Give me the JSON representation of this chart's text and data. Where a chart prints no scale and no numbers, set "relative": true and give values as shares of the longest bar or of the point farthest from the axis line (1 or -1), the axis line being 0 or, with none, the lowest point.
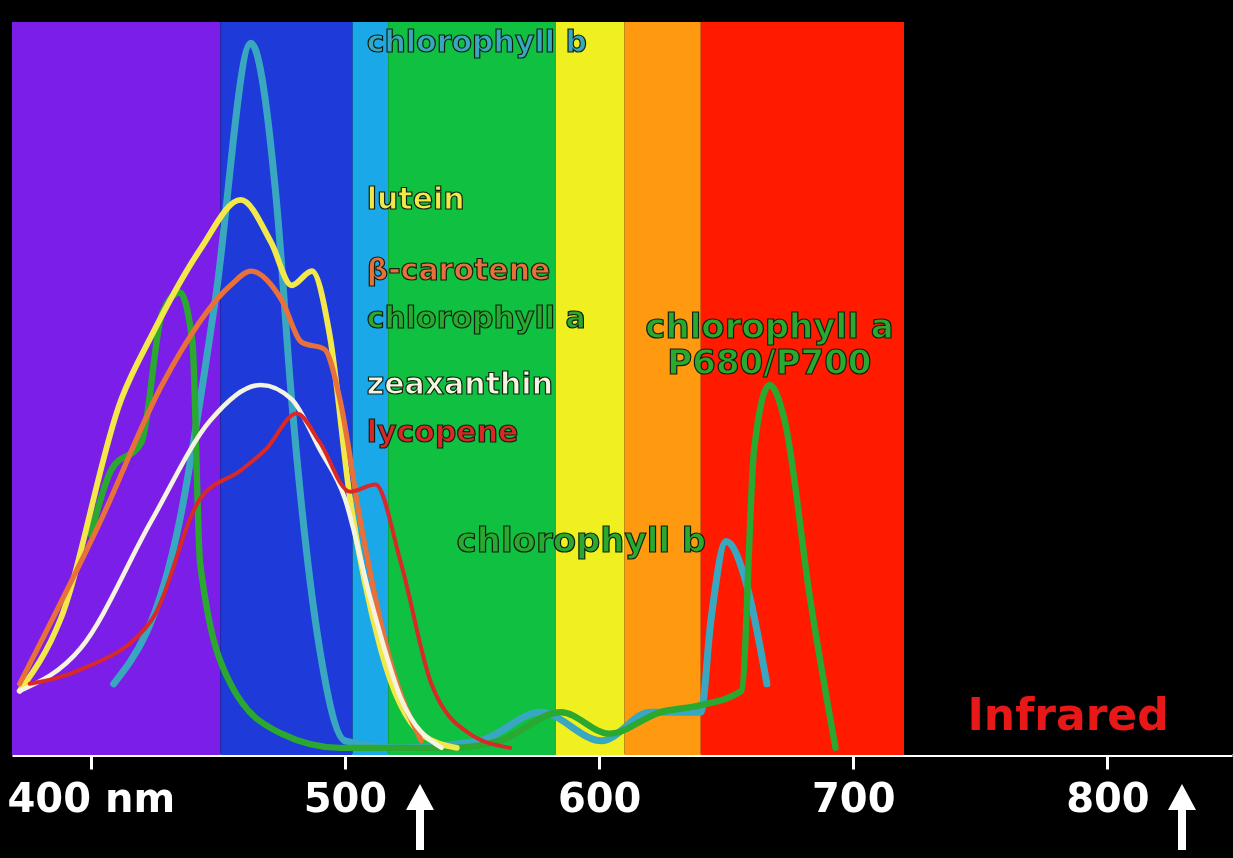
{
  "chart_data": {
    "type": "line",
    "relative": true,
    "xlim": [
      369,
      849
    ],
    "xticks": [
      {
        "value": 400,
        "label": "400 nm"
      },
      500,
      600,
      700,
      800
    ],
    "series": [
      {
        "name": "chlorophyll b",
        "color": "#3aa7c0",
        "x": [
          409,
          435,
          449,
          463,
          473,
          479,
          490,
          500,
          522,
          553,
          577,
          601,
          620,
          640,
          644,
          650,
          658,
          666
        ],
        "values": [
          0.1,
          0.33,
          0.64,
          1.0,
          0.78,
          0.5,
          0.15,
          0.02,
          0.01,
          0.02,
          0.06,
          0.02,
          0.06,
          0.06,
          0.19,
          0.3,
          0.24,
          0.1
        ]
      },
      {
        "name": "chlorophyll a",
        "color": "#2aa830",
        "x": [
          400,
          408,
          420,
          428,
          435,
          440,
          443,
          455,
          475,
          498,
          542,
          561,
          585,
          604,
          624,
          640,
          656,
          661,
          667,
          673,
          683,
          693
        ],
        "values": [
          0.31,
          0.4,
          0.44,
          0.62,
          0.65,
          0.58,
          0.27,
          0.1,
          0.03,
          0.01,
          0.01,
          0.02,
          0.06,
          0.03,
          0.06,
          0.07,
          0.09,
          0.43,
          0.52,
          0.47,
          0.22,
          0.01
        ]
      },
      {
        "name": "lutein",
        "color": "#f2e84a",
        "x": [
          372,
          388,
          412,
          424,
          443,
          459,
          471,
          479,
          487,
          494,
          502,
          514,
          530,
          544
        ],
        "values": [
          0.09,
          0.19,
          0.5,
          0.59,
          0.71,
          0.78,
          0.72,
          0.66,
          0.68,
          0.59,
          0.36,
          0.15,
          0.03,
          0.01
        ]
      },
      {
        "name": "β-carotene",
        "color": "#e8703a",
        "x": [
          372,
          404,
          428,
          455,
          463,
          475,
          483,
          492,
          498,
          506,
          518,
          530
        ],
        "values": [
          0.1,
          0.33,
          0.52,
          0.66,
          0.68,
          0.64,
          0.58,
          0.57,
          0.5,
          0.33,
          0.13,
          0.02
        ]
      },
      {
        "name": "zeaxanthin",
        "color": "#f4f4e0",
        "x": [
          372,
          396,
          424,
          447,
          467,
          479,
          490,
          500,
          510,
          522,
          538
        ],
        "values": [
          0.09,
          0.15,
          0.33,
          0.47,
          0.52,
          0.5,
          0.43,
          0.36,
          0.22,
          0.08,
          0.01
        ]
      },
      {
        "name": "lycopene",
        "color": "#d82828",
        "x": [
          376,
          396,
          424,
          443,
          459,
          469,
          481,
          490,
          502,
          512,
          522,
          534,
          549,
          565
        ],
        "values": [
          0.1,
          0.12,
          0.19,
          0.36,
          0.4,
          0.43,
          0.48,
          0.44,
          0.37,
          0.38,
          0.27,
          0.1,
          0.03,
          0.01
        ]
      }
    ],
    "bands": [
      {
        "axis": "x",
        "from": 369,
        "to": 451,
        "color": "#7a1ee8"
      },
      {
        "axis": "x",
        "from": 451,
        "to": 503,
        "color": "#1e3ad8"
      },
      {
        "axis": "x",
        "from": 503,
        "to": 517,
        "color": "#1aa8e8"
      },
      {
        "axis": "x",
        "from": 517,
        "to": 583,
        "color": "#10c040"
      },
      {
        "axis": "x",
        "from": 583,
        "to": 610,
        "color": "#f0f020"
      },
      {
        "axis": "x",
        "from": 610,
        "to": 640,
        "color": "#ff9a10"
      },
      {
        "axis": "x",
        "from": 640,
        "to": 720,
        "color": "#ff1a00"
      },
      {
        "axis": "x",
        "from": 720,
        "to": 849,
        "color": "#000000",
        "label": "Infrared"
      }
    ],
    "annotations": [
      {
        "text": "chlorophyll a\nP680/P700",
        "x": 667,
        "y": 0.52
      },
      {
        "text": "chlorophyll b",
        "x": 650,
        "y": 0.3
      }
    ]
  }
}
